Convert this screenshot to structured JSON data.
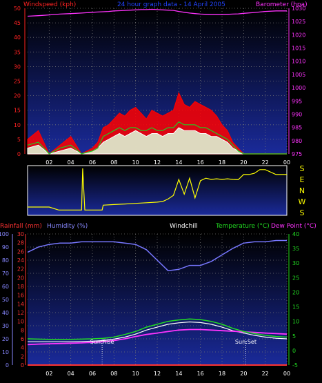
{
  "header": {
    "windspeed_label": "Windspeed (kph)",
    "date_title": "24 hour graph data - 14 April 2005",
    "barometer_label": "Barometer (hpa)"
  },
  "lower_header": {
    "rainfall_label": "Rainfall (mm)",
    "humidity_label": "Humidity (%)",
    "windchill_label": "Windchill",
    "temperature_label": "Temperature (°C)",
    "dewpoint_label": "Dew Point (°C)"
  },
  "colors": {
    "wind_gust": "#ff0000",
    "wind_avg": "#ffffff",
    "wind_avg2": "#22cc22",
    "barometer": "#ff33ff",
    "direction": "#ffff00",
    "temperature": "#22dd22",
    "dewpoint": "#ff33ff",
    "humidity": "#7777ff",
    "rainfall": "#ff3333",
    "windchill": "#ffffff",
    "sunline": "#ffffff"
  },
  "chart_data": [
    {
      "type": "line",
      "name": "wind-barometer",
      "x_ticks": [
        "02",
        "04",
        "06",
        "08",
        "10",
        "12",
        "14",
        "16",
        "18",
        "20",
        "22",
        "00"
      ],
      "y_left_ticks": [
        "0",
        "5",
        "10",
        "15",
        "20",
        "25",
        "30",
        "35",
        "40",
        "45",
        "50"
      ],
      "ylim_left": [
        0,
        50
      ],
      "y_right_ticks": [
        "975",
        "980",
        "985",
        "990",
        "995",
        "1000",
        "1005",
        "1010",
        "1015",
        "1020",
        "1025",
        "1030"
      ],
      "ylim_right": [
        975,
        1030
      ],
      "hours": [
        0,
        1,
        2,
        3,
        4,
        5,
        6,
        6.5,
        7,
        7.5,
        8,
        8.5,
        9,
        9.5,
        10,
        10.5,
        11,
        11.5,
        12,
        12.5,
        13,
        13.5,
        14,
        14.5,
        15,
        15.5,
        16,
        16.5,
        17,
        17.5,
        18,
        18.5,
        19,
        19.5,
        20,
        21,
        22,
        23,
        24
      ],
      "gust": [
        5,
        8,
        0,
        3,
        6,
        0,
        2,
        4,
        9,
        10,
        12,
        14,
        13,
        15,
        16,
        14,
        12,
        15,
        14,
        13,
        14,
        15,
        21,
        17,
        16,
        18,
        17,
        16,
        15,
        13,
        10,
        8,
        4,
        2,
        0,
        0,
        0,
        0,
        0
      ],
      "average": [
        2,
        3,
        0,
        1,
        2,
        0,
        1,
        2,
        4,
        5,
        6,
        7,
        6,
        7,
        8,
        7,
        6,
        7,
        7,
        6,
        7,
        7,
        9,
        8,
        8,
        8,
        7,
        7,
        6,
        6,
        5,
        4,
        2,
        1,
        0,
        0,
        0,
        0,
        0
      ],
      "average2": [
        3,
        4,
        0,
        2,
        3,
        0,
        1,
        2,
        6,
        7,
        8,
        9,
        8,
        9,
        9,
        8,
        8,
        9,
        8,
        8,
        9,
        9,
        11,
        10,
        10,
        10,
        9,
        9,
        8,
        7,
        6,
        5,
        3,
        1,
        0,
        0,
        0,
        0,
        0
      ],
      "barometer": [
        1027.0,
        1027.2,
        1027.5,
        1027.8,
        1028.0,
        1028.2,
        1028.5,
        1028.6,
        1028.7,
        1028.8,
        1029.0,
        1029.1,
        1029.2,
        1029.3,
        1029.4,
        1029.5,
        1029.5,
        1029.6,
        1029.5,
        1029.4,
        1029.3,
        1029.2,
        1028.8,
        1028.5,
        1028.2,
        1028.0,
        1027.8,
        1027.7,
        1027.6,
        1027.6,
        1027.6,
        1027.7,
        1027.8,
        1027.9,
        1028.1,
        1028.4,
        1028.8,
        1029.0,
        1029.0
      ]
    },
    {
      "type": "line",
      "name": "wind-direction",
      "y_ticks": [
        "S",
        "E",
        "N",
        "W",
        "S"
      ],
      "hours": [
        0,
        1,
        2,
        2.9,
        3,
        5,
        5.1,
        5.3,
        6,
        6.9,
        7,
        8,
        9,
        10,
        11,
        12,
        12.5,
        13,
        13.5,
        14,
        14.5,
        15,
        15.5,
        16,
        16.5,
        17,
        17.5,
        18,
        18.5,
        19,
        19.5,
        20,
        20.5,
        21,
        21.5,
        22,
        23,
        24
      ],
      "direction_deg": [
        225,
        225,
        225,
        200,
        200,
        200,
        180,
        200,
        200,
        200,
        240,
        245,
        250,
        255,
        260,
        265,
        270,
        290,
        320,
        90,
        330,
        100,
        300,
        80,
        100,
        90,
        95,
        90,
        95,
        90,
        88,
        130,
        130,
        140,
        170,
        170,
        130,
        130
      ]
    },
    {
      "type": "line",
      "name": "temperature-humidity",
      "x_ticks": [
        "02",
        "04",
        "06",
        "08",
        "10",
        "12",
        "14",
        "16",
        "18",
        "20",
        "22",
        "00"
      ],
      "y_left1_ticks": [
        "0",
        "10",
        "20",
        "30",
        "40",
        "50",
        "60",
        "70",
        "80",
        "90",
        "100"
      ],
      "ylim_left1": [
        0,
        100
      ],
      "y_left2_ticks": [
        "0",
        "2",
        "4",
        "6",
        "8",
        "10",
        "12",
        "14",
        "16",
        "18",
        "20",
        "22",
        "24",
        "26",
        "28",
        "30"
      ],
      "ylim_left2": [
        0,
        30
      ],
      "y_right_ticks": [
        "-5",
        "0",
        "5",
        "10",
        "15",
        "20",
        "25",
        "30",
        "35",
        "40"
      ],
      "ylim_right": [
        -5,
        40
      ],
      "annotations": [
        "Sun:Rise",
        "Sun:Set"
      ],
      "sunrise_hour": 6.9,
      "sunset_hour": 20.2,
      "hours": [
        0,
        1,
        2,
        3,
        4,
        5,
        6,
        7,
        8,
        9,
        10,
        11,
        12,
        13,
        14,
        15,
        16,
        17,
        18,
        19,
        20,
        21,
        22,
        23,
        24
      ],
      "temperature": [
        4.0,
        3.9,
        3.8,
        3.8,
        3.8,
        3.9,
        4.0,
        4.2,
        4.6,
        5.5,
        6.5,
        8.0,
        9.0,
        10.0,
        10.5,
        10.8,
        10.6,
        10.0,
        9.0,
        7.6,
        6.5,
        5.8,
        5.2,
        4.8,
        4.6
      ],
      "dewpoint": [
        2.0,
        2.2,
        2.3,
        2.4,
        2.5,
        2.6,
        2.8,
        3.0,
        3.4,
        4.0,
        4.8,
        5.5,
        6.0,
        6.5,
        7.0,
        7.2,
        7.2,
        7.0,
        6.8,
        6.6,
        6.4,
        6.2,
        6.0,
        5.8,
        5.6
      ],
      "windchill": [
        3.0,
        3.0,
        3.0,
        3.0,
        3.0,
        3.1,
        3.2,
        3.4,
        3.9,
        4.6,
        5.6,
        7.0,
        8.0,
        9.0,
        9.5,
        9.8,
        9.6,
        9.0,
        8.0,
        6.8,
        6.0,
        5.2,
        4.6,
        4.2,
        4.0
      ],
      "humidity": [
        86,
        90,
        92,
        93,
        93,
        94,
        94,
        94,
        94,
        93,
        92,
        88,
        80,
        72,
        73,
        76,
        76,
        79,
        84,
        89,
        93,
        94,
        94,
        95,
        95
      ],
      "rainfall": [
        0,
        0,
        0,
        0,
        0,
        0,
        0,
        0,
        0,
        0,
        0,
        0,
        0,
        0,
        0,
        0,
        0,
        0,
        0,
        0,
        0,
        0,
        0,
        0,
        0
      ]
    }
  ]
}
